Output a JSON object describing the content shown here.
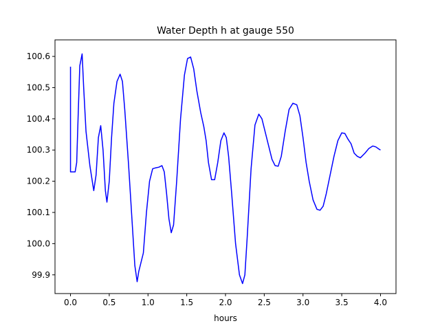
{
  "chart_data": {
    "type": "line",
    "title": "Water Depth h at gauge 550",
    "xlabel": "hours",
    "ylabel": "",
    "xlim": [
      -0.2,
      4.2
    ],
    "ylim": [
      99.84,
      100.653
    ],
    "xticks": [
      0.0,
      0.5,
      1.0,
      1.5,
      2.0,
      2.5,
      3.0,
      3.5,
      4.0
    ],
    "xtick_labels": [
      "0.0",
      "0.5",
      "1.0",
      "1.5",
      "2.0",
      "2.5",
      "3.0",
      "3.5",
      "4.0"
    ],
    "yticks": [
      99.9,
      100.0,
      100.1,
      100.2,
      100.3,
      100.4,
      100.5,
      100.6
    ],
    "ytick_labels": [
      "99.9",
      "100.0",
      "100.1",
      "100.2",
      "100.3",
      "100.4",
      "100.5",
      "100.6"
    ],
    "grid": false,
    "series": [
      {
        "color": "#0000ff",
        "x": [
          0.0,
          0.0,
          0.0,
          0.04,
          0.06,
          0.08,
          0.1,
          0.12,
          0.15,
          0.17,
          0.2,
          0.25,
          0.3,
          0.33,
          0.36,
          0.39,
          0.42,
          0.45,
          0.47,
          0.5,
          0.53,
          0.56,
          0.6,
          0.64,
          0.67,
          0.7,
          0.75,
          0.8,
          0.83,
          0.86,
          0.88,
          0.9,
          0.94,
          0.98,
          1.02,
          1.06,
          1.1,
          1.14,
          1.18,
          1.21,
          1.24,
          1.27,
          1.3,
          1.33,
          1.37,
          1.42,
          1.47,
          1.51,
          1.55,
          1.59,
          1.63,
          1.68,
          1.72,
          1.75,
          1.78,
          1.82,
          1.86,
          1.9,
          1.94,
          1.98,
          2.01,
          2.04,
          2.08,
          2.13,
          2.18,
          2.22,
          2.25,
          2.28,
          2.33,
          2.38,
          2.43,
          2.47,
          2.5,
          2.55,
          2.6,
          2.64,
          2.68,
          2.72,
          2.77,
          2.82,
          2.87,
          2.92,
          2.96,
          3.0,
          3.04,
          3.08,
          3.13,
          3.18,
          3.22,
          3.26,
          3.3,
          3.35,
          3.4,
          3.45,
          3.5,
          3.54,
          3.58,
          3.62,
          3.66,
          3.7,
          3.74,
          3.8,
          3.85,
          3.9,
          3.94,
          3.98,
          4.0
        ],
        "y": [
          100.567,
          100.232,
          100.23,
          100.23,
          100.23,
          100.26,
          100.42,
          100.57,
          100.608,
          100.5,
          100.36,
          100.25,
          100.17,
          100.22,
          100.34,
          100.378,
          100.3,
          100.17,
          100.133,
          100.2,
          100.34,
          100.45,
          100.52,
          100.543,
          100.52,
          100.43,
          100.25,
          100.05,
          99.93,
          99.878,
          99.91,
          99.93,
          99.97,
          100.1,
          100.2,
          100.24,
          100.243,
          100.245,
          100.25,
          100.23,
          100.16,
          100.08,
          100.035,
          100.06,
          100.2,
          100.4,
          100.54,
          100.593,
          100.598,
          100.56,
          100.49,
          100.42,
          100.375,
          100.33,
          100.26,
          100.205,
          100.205,
          100.26,
          100.33,
          100.355,
          100.34,
          100.28,
          100.16,
          100.0,
          99.9,
          99.872,
          99.9,
          100.02,
          100.24,
          100.38,
          100.415,
          100.4,
          100.37,
          100.32,
          100.27,
          100.25,
          100.248,
          100.28,
          100.36,
          100.43,
          100.45,
          100.445,
          100.41,
          100.34,
          100.26,
          100.2,
          100.14,
          100.11,
          100.107,
          100.12,
          100.16,
          100.22,
          100.28,
          100.33,
          100.355,
          100.353,
          100.335,
          100.32,
          100.29,
          100.28,
          100.275,
          100.29,
          100.305,
          100.313,
          100.31,
          100.303,
          100.3
        ]
      }
    ]
  }
}
